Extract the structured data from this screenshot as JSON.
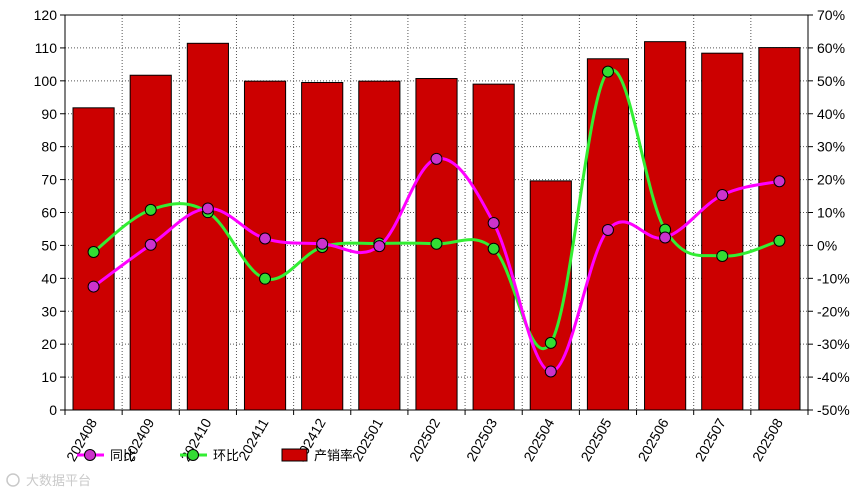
{
  "chart_data": {
    "type": "bar",
    "categories": [
      "202408",
      "202409",
      "202410",
      "202411",
      "202412",
      "202501",
      "202502",
      "202503",
      "202504",
      "202505",
      "202506",
      "202507",
      "202508"
    ],
    "series": [
      {
        "name": "产销率",
        "type": "bar",
        "axis": "left",
        "values": [
          91.8,
          101.7,
          111.4,
          99.9,
          99.5,
          99.9,
          100.7,
          99.0,
          69.6,
          106.7,
          111.9,
          108.4,
          110.1
        ]
      },
      {
        "name": "同比",
        "type": "line",
        "axis": "right",
        "values": [
          -12.5,
          0.2,
          11.2,
          2.1,
          0.5,
          -0.2,
          26.3,
          6.8,
          -38.3,
          4.7,
          2.4,
          15.3,
          19.5
        ]
      },
      {
        "name": "环比",
        "type": "line",
        "axis": "right",
        "values": [
          -2.0,
          10.8,
          10.1,
          -10.1,
          -0.5,
          0.6,
          0.5,
          -1.0,
          -29.6,
          52.8,
          4.8,
          -3.2,
          1.4
        ]
      }
    ],
    "y_left": {
      "ylim": [
        0,
        120
      ],
      "ticks": [
        "0",
        "10",
        "20",
        "30",
        "40",
        "50",
        "60",
        "70",
        "80",
        "90",
        "100",
        "110",
        "120"
      ]
    },
    "y_right": {
      "ylim": [
        -50,
        70
      ],
      "ticks": [
        "-50%",
        "-40%",
        "-30%",
        "-20%",
        "-10%",
        "0%",
        "10%",
        "20%",
        "30%",
        "40%",
        "50%",
        "60%",
        "70%"
      ]
    },
    "grid": true,
    "legend": {
      "position": "bottom",
      "entries": [
        "同比",
        "环比",
        "产销率"
      ]
    },
    "colors": {
      "bar": "#cc0000",
      "yoy": "#ff00ff",
      "mom": "#33ee33",
      "marker_yoy": "#cc33cc",
      "marker_mom": "#33dd33"
    }
  },
  "watermark": {
    "text": "大数据平台"
  }
}
